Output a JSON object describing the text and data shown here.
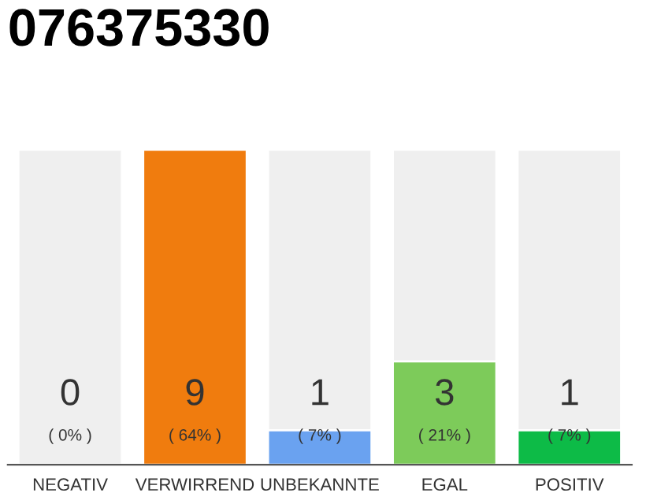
{
  "chart_data": {
    "type": "bar",
    "title": "076375330",
    "categories": [
      "NEGATIV",
      "VERWIRREND",
      "UNBEKANNTE",
      "EGAL",
      "POSITIV"
    ],
    "values": [
      0,
      64,
      7,
      21,
      7
    ],
    "colors": [
      null,
      "#f07c0e",
      "#6aa2f0",
      "#7dcb5a",
      "#0dbb47"
    ],
    "value_labels": [
      "( 0% )",
      "( 64% )",
      "( 7% )",
      "( 21% )",
      "( 7% )"
    ],
    "annotations": [
      "0",
      "9",
      "1",
      "3",
      "1"
    ],
    "legend": false
  }
}
